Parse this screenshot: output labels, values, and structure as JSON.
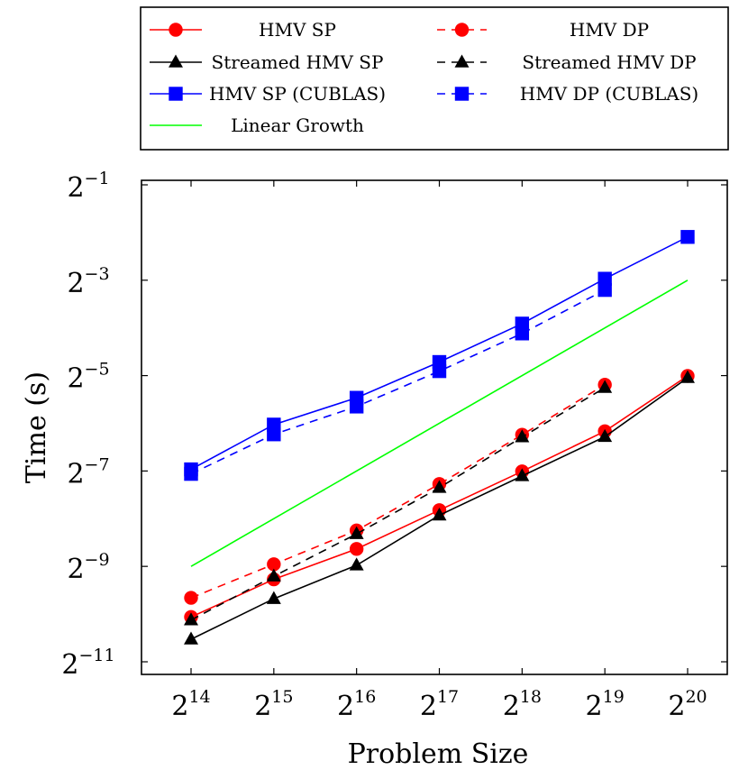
{
  "chart_data": {
    "type": "line",
    "xlabel": "Problem Size",
    "ylabel": "Time (s)",
    "x_scale": "log2",
    "y_scale": "log2",
    "xlim": [
      16384,
      1048576
    ],
    "ylim": [
      0.000488,
      0.5
    ],
    "x": [
      16384,
      32768,
      65536,
      131072,
      262144,
      524288,
      1048576
    ],
    "x_tick_base": "2",
    "x_tick_exponents": [
      "14",
      "15",
      "16",
      "17",
      "18",
      "19",
      "20"
    ],
    "y_tick_base": "2",
    "y_tick_exponents": [
      "−1",
      "−3",
      "−5",
      "−7",
      "−9",
      "−11"
    ],
    "y_tick_values": [
      0.5,
      0.125,
      0.03125,
      0.0078125,
      0.001953,
      0.000488
    ],
    "legend_position": "above",
    "series": [
      {
        "name": "HMV SP",
        "color": "#ff0000",
        "dash": "solid",
        "marker": "circle",
        "values": [
          0.000936,
          0.001618,
          0.002516,
          0.004422,
          0.00777,
          0.01392,
          0.03109
        ]
      },
      {
        "name": "HMV DP",
        "color": "#ff0000",
        "dash": "dashed",
        "marker": "circle",
        "values": [
          0.001236,
          0.002013,
          0.003294,
          0.006464,
          0.01323,
          0.02737,
          null
        ]
      },
      {
        "name": "Streamed HMV SP",
        "color": "#000000",
        "dash": "solid",
        "marker": "triangle",
        "values": [
          0.000677,
          0.00122,
          0.001986,
          0.004104,
          0.007272,
          0.01285,
          0.03027
        ]
      },
      {
        "name": "Streamed HMV DP",
        "color": "#000000",
        "dash": "dashed",
        "marker": "triangle",
        "values": [
          0.000895,
          0.001692,
          0.00313,
          0.006128,
          0.01279,
          0.02623,
          null
        ]
      },
      {
        "name": "HMV SP (CUBLAS)",
        "color": "#0000ff",
        "dash": "solid",
        "marker": "square",
        "values": [
          0.008,
          0.01533,
          0.02263,
          0.03807,
          0.06652,
          0.1277,
          0.2345
        ]
      },
      {
        "name": "HMV DP (CUBLAS)",
        "color": "#0000ff",
        "dash": "dashed",
        "marker": "square",
        "values": [
          0.00749,
          0.01331,
          0.01994,
          0.03335,
          0.05768,
          0.1085,
          null
        ]
      },
      {
        "name": "Linear Growth",
        "color": "#00ff00",
        "dash": "solid",
        "marker": "none",
        "values": [
          0.001953,
          null,
          null,
          null,
          null,
          null,
          0.125
        ]
      }
    ]
  }
}
